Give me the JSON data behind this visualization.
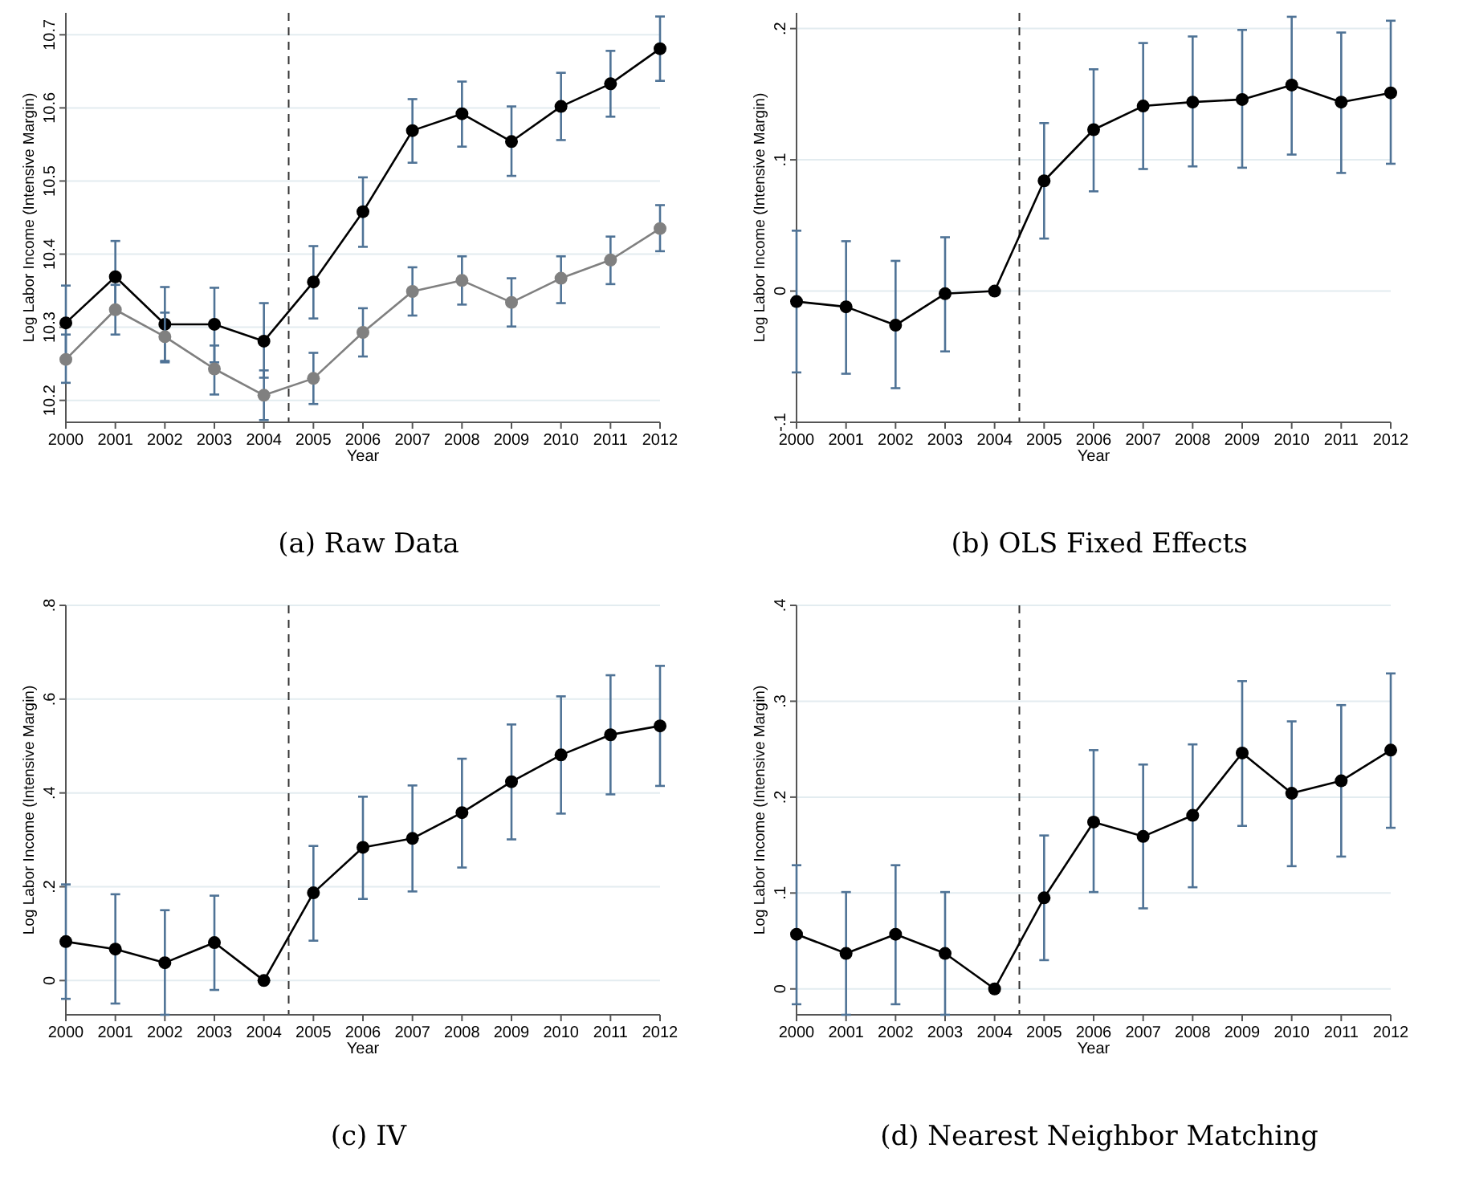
{
  "chart_data": [
    {
      "type": "line",
      "title": "(a) Raw Data",
      "xlabel": "Year",
      "ylabel": "Log Labor Income (Intensive Margin)",
      "x": [
        2000,
        2001,
        2002,
        2003,
        2004,
        2005,
        2006,
        2007,
        2008,
        2009,
        2010,
        2011,
        2012
      ],
      "xlim": [
        2000,
        2012
      ],
      "xticks": [
        2000,
        2001,
        2002,
        2003,
        2004,
        2005,
        2006,
        2007,
        2008,
        2009,
        2010,
        2011,
        2012
      ],
      "ylim": [
        10.17,
        10.73
      ],
      "yticks": [
        10.2,
        10.3,
        10.4,
        10.5,
        10.6,
        10.7
      ],
      "grid": "y",
      "marker": "circle",
      "line_style": "solid",
      "ref_lines": [
        {
          "axis": "x",
          "value": 2004.5,
          "line_style": "dashed"
        }
      ],
      "series": [
        {
          "color": "#000000",
          "values": [
            10.306,
            10.369,
            10.304,
            10.304,
            10.281,
            10.362,
            10.458,
            10.569,
            10.592,
            10.554,
            10.602,
            10.633,
            10.681
          ],
          "errors": [
            [
              10.256,
              10.357
            ],
            [
              10.32,
              10.418
            ],
            [
              10.252,
              10.355
            ],
            [
              10.252,
              10.354
            ],
            [
              10.231,
              10.333
            ],
            [
              10.312,
              10.411
            ],
            [
              10.41,
              10.505
            ],
            [
              10.525,
              10.612
            ],
            [
              10.547,
              10.636
            ],
            [
              10.507,
              10.602
            ],
            [
              10.556,
              10.648
            ],
            [
              10.588,
              10.678
            ],
            [
              10.637,
              10.725
            ]
          ]
        },
        {
          "color": "#808080",
          "values": [
            10.256,
            10.324,
            10.287,
            10.243,
            10.207,
            10.23,
            10.293,
            10.349,
            10.364,
            10.334,
            10.367,
            10.392,
            10.435
          ],
          "errors": [
            [
              10.224,
              10.29
            ],
            [
              10.29,
              10.358
            ],
            [
              10.254,
              10.32
            ],
            [
              10.208,
              10.275
            ],
            [
              10.173,
              10.241
            ],
            [
              10.195,
              10.265
            ],
            [
              10.26,
              10.326
            ],
            [
              10.316,
              10.382
            ],
            [
              10.331,
              10.397
            ],
            [
              10.301,
              10.367
            ],
            [
              10.333,
              10.397
            ],
            [
              10.359,
              10.424
            ],
            [
              10.404,
              10.467
            ]
          ]
        }
      ]
    },
    {
      "type": "line",
      "title": "(b) OLS Fixed Effects",
      "xlabel": "Year",
      "ylabel": "Log Labor Income (Intensive Margin)",
      "x": [
        2000,
        2001,
        2002,
        2003,
        2004,
        2005,
        2006,
        2007,
        2008,
        2009,
        2010,
        2011,
        2012
      ],
      "xlim": [
        2000,
        2012
      ],
      "xticks": [
        2000,
        2001,
        2002,
        2003,
        2004,
        2005,
        2006,
        2007,
        2008,
        2009,
        2010,
        2011,
        2012
      ],
      "ylim": [
        -0.1,
        0.212
      ],
      "yticks": [
        {
          "value": -0.1,
          "label": "-.1"
        },
        0,
        {
          "value": 0.1,
          "label": ".1"
        },
        {
          "value": 0.2,
          "label": ".2"
        }
      ],
      "grid": "y",
      "marker": "circle",
      "line_style": "solid",
      "ref_lines": [
        {
          "axis": "x",
          "value": 2004.5,
          "line_style": "dashed"
        }
      ],
      "series": [
        {
          "color": "#000000",
          "values": [
            -0.008,
            -0.012,
            -0.026,
            -0.002,
            0,
            0.084,
            0.123,
            0.141,
            0.144,
            0.146,
            0.157,
            0.144,
            0.151
          ],
          "errors": [
            [
              -0.062,
              0.046
            ],
            [
              -0.063,
              0.038
            ],
            [
              -0.074,
              0.023
            ],
            [
              -0.046,
              0.041
            ],
            null,
            [
              0.04,
              0.128
            ],
            [
              0.076,
              0.169
            ],
            [
              0.093,
              0.189
            ],
            [
              0.095,
              0.194
            ],
            [
              0.094,
              0.199
            ],
            [
              0.104,
              0.209
            ],
            [
              0.09,
              0.197
            ],
            [
              0.097,
              0.206
            ]
          ]
        }
      ]
    },
    {
      "type": "line",
      "title": "(c) IV",
      "xlabel": "Year",
      "ylabel": "Log Labor Income (Intensive Margin)",
      "x": [
        2000,
        2001,
        2002,
        2003,
        2004,
        2005,
        2006,
        2007,
        2008,
        2009,
        2010,
        2011,
        2012
      ],
      "xlim": [
        2000,
        2012
      ],
      "xticks": [
        2000,
        2001,
        2002,
        2003,
        2004,
        2005,
        2006,
        2007,
        2008,
        2009,
        2010,
        2011,
        2012
      ],
      "ylim": [
        -0.073,
        0.8
      ],
      "yticks": [
        0,
        {
          "value": 0.2,
          "label": ".2"
        },
        {
          "value": 0.4,
          "label": ".4"
        },
        {
          "value": 0.6,
          "label": ".6"
        },
        {
          "value": 0.8,
          "label": ".8"
        }
      ],
      "grid": "y",
      "marker": "circle",
      "line_style": "solid",
      "ref_lines": [
        {
          "axis": "x",
          "value": 2004.5,
          "line_style": "dashed"
        }
      ],
      "series": [
        {
          "color": "#000000",
          "values": [
            0.083,
            0.067,
            0.038,
            0.081,
            0,
            0.187,
            0.284,
            0.303,
            0.358,
            0.424,
            0.481,
            0.524,
            0.543
          ],
          "errors": [
            [
              -0.039,
              0.205
            ],
            [
              -0.049,
              0.184
            ],
            [
              -0.073,
              0.15
            ],
            [
              -0.02,
              0.181
            ],
            null,
            [
              0.085,
              0.287
            ],
            [
              0.174,
              0.392
            ],
            [
              0.19,
              0.416
            ],
            [
              0.241,
              0.473
            ],
            [
              0.301,
              0.546
            ],
            [
              0.356,
              0.606
            ],
            [
              0.397,
              0.651
            ],
            [
              0.415,
              0.671
            ]
          ]
        }
      ]
    },
    {
      "type": "line",
      "title": "(d) Nearest Neighbor Matching",
      "xlabel": "Year",
      "ylabel": "Log Labor Income (Intensive Margin)",
      "x": [
        2000,
        2001,
        2002,
        2003,
        2004,
        2005,
        2006,
        2007,
        2008,
        2009,
        2010,
        2011,
        2012
      ],
      "xlim": [
        2000,
        2012
      ],
      "xticks": [
        2000,
        2001,
        2002,
        2003,
        2004,
        2005,
        2006,
        2007,
        2008,
        2009,
        2010,
        2011,
        2012
      ],
      "ylim": [
        -0.027,
        0.4
      ],
      "yticks": [
        0,
        {
          "value": 0.1,
          "label": ".1"
        },
        {
          "value": 0.2,
          "label": ".2"
        },
        {
          "value": 0.3,
          "label": ".3"
        },
        {
          "value": 0.4,
          "label": ".4"
        }
      ],
      "grid": "y",
      "marker": "circle",
      "line_style": "solid",
      "ref_lines": [
        {
          "axis": "x",
          "value": 2004.5,
          "line_style": "dashed"
        }
      ],
      "series": [
        {
          "color": "#000000",
          "values": [
            0.057,
            0.037,
            0.057,
            0.037,
            0,
            0.095,
            0.174,
            0.159,
            0.181,
            0.246,
            0.204,
            0.217,
            0.249
          ],
          "errors": [
            [
              -0.016,
              0.129
            ],
            [
              -0.027,
              0.101
            ],
            [
              -0.016,
              0.129
            ],
            [
              -0.027,
              0.101
            ],
            null,
            [
              0.03,
              0.16
            ],
            [
              0.101,
              0.249
            ],
            [
              0.084,
              0.234
            ],
            [
              0.106,
              0.255
            ],
            [
              0.17,
              0.321
            ],
            [
              0.128,
              0.279
            ],
            [
              0.138,
              0.296
            ],
            [
              0.168,
              0.329
            ]
          ]
        }
      ]
    }
  ]
}
